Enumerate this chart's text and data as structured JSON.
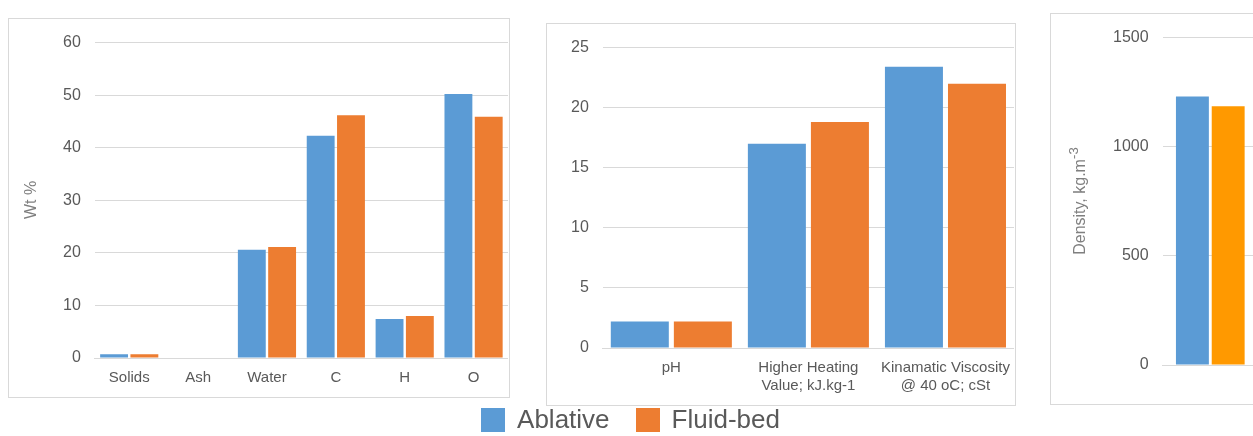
{
  "chart_data": [
    {
      "type": "bar",
      "ylabel": "Wt %",
      "categories": [
        "Solids",
        "Ash",
        "Water",
        "C",
        "H",
        "O"
      ],
      "ylim": [
        0,
        60
      ],
      "yticks": [
        0,
        10,
        20,
        30,
        40,
        50,
        60
      ],
      "grid": "y",
      "legend": "bottom",
      "series": [
        {
          "name": "Ablative",
          "color": "#5b9bd5",
          "values": [
            0.7,
            0,
            20.6,
            42.3,
            7.4,
            50.2
          ]
        },
        {
          "name": "Fluid-bed",
          "color": "#ed7d31",
          "values": [
            0.7,
            0,
            21.1,
            46.2,
            8.0,
            45.9
          ]
        }
      ]
    },
    {
      "type": "bar",
      "categories": [
        "pH",
        "Higher Heating Value;  kJ.kg-1",
        "Kinamatic  Viscosity @ 40 oC; cSt"
      ],
      "ylim": [
        0,
        25
      ],
      "yticks": [
        0,
        5,
        10,
        15,
        20,
        25
      ],
      "grid": "y",
      "series": [
        {
          "color": "#5b9bd5",
          "values": [
            2.2,
            17.0,
            23.4
          ]
        },
        {
          "color": "#ed7d31",
          "values": [
            2.2,
            18.8,
            22.0
          ]
        }
      ]
    },
    {
      "type": "bar",
      "ylabel": "Density, kg.m$^{-3}$",
      "categories": [
        null
      ],
      "ylim": [
        0,
        1500
      ],
      "yticks": [
        0,
        500,
        1000,
        1500
      ],
      "grid": "y",
      "series": [
        {
          "color": "#5b9bd5",
          "values": [
            1230
          ]
        },
        {
          "color": "#ff9900",
          "values": [
            1185
          ]
        }
      ]
    }
  ]
}
